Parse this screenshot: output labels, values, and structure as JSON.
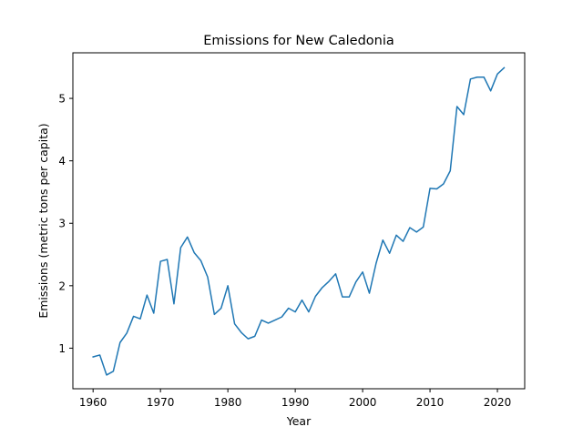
{
  "chart_data": {
    "type": "line",
    "title": "Emissions for New Caledonia",
    "xlabel": "Year",
    "ylabel": "Emissions (metric tons per capita)",
    "xlim": [
      1957,
      2024.05
    ],
    "ylim": [
      0.35,
      5.73
    ],
    "xticks": [
      1960,
      1970,
      1980,
      1990,
      2000,
      2010,
      2020
    ],
    "yticks": [
      1,
      2,
      3,
      4,
      5
    ],
    "grid": false,
    "line_color": "#1f77b4",
    "series": [
      {
        "x": [
          1960,
          1961,
          1962,
          1963,
          1964,
          1965,
          1966,
          1967,
          1968,
          1969,
          1970,
          1971,
          1972,
          1973,
          1974,
          1975,
          1976,
          1977,
          1978,
          1979,
          1980,
          1981,
          1982,
          1983,
          1984,
          1985,
          1986,
          1987,
          1988,
          1989,
          1990,
          1991,
          1992,
          1993,
          1994,
          1995,
          1996,
          1997,
          1998,
          1999,
          2000,
          2001,
          2002,
          2003,
          2004,
          2005,
          2006,
          2007,
          2008,
          2009,
          2010,
          2011,
          2012,
          2013,
          2014,
          2015,
          2016,
          2017,
          2018,
          2019,
          2020,
          2021
        ],
        "values": [
          0.86,
          0.89,
          0.57,
          0.63,
          1.09,
          1.24,
          1.51,
          1.47,
          1.85,
          1.56,
          2.39,
          2.42,
          1.71,
          2.61,
          2.78,
          2.53,
          2.4,
          2.14,
          1.54,
          1.64,
          2.0,
          1.39,
          1.25,
          1.15,
          1.19,
          1.45,
          1.4,
          1.45,
          1.5,
          1.64,
          1.58,
          1.77,
          1.58,
          1.83,
          1.97,
          2.07,
          2.19,
          1.82,
          1.82,
          2.06,
          2.22,
          1.88,
          2.36,
          2.73,
          2.52,
          2.81,
          2.71,
          2.93,
          2.86,
          2.94,
          3.56,
          3.55,
          3.63,
          3.84,
          4.87,
          4.74,
          5.31,
          5.34,
          5.34,
          5.12,
          5.39,
          5.49
        ]
      }
    ]
  }
}
